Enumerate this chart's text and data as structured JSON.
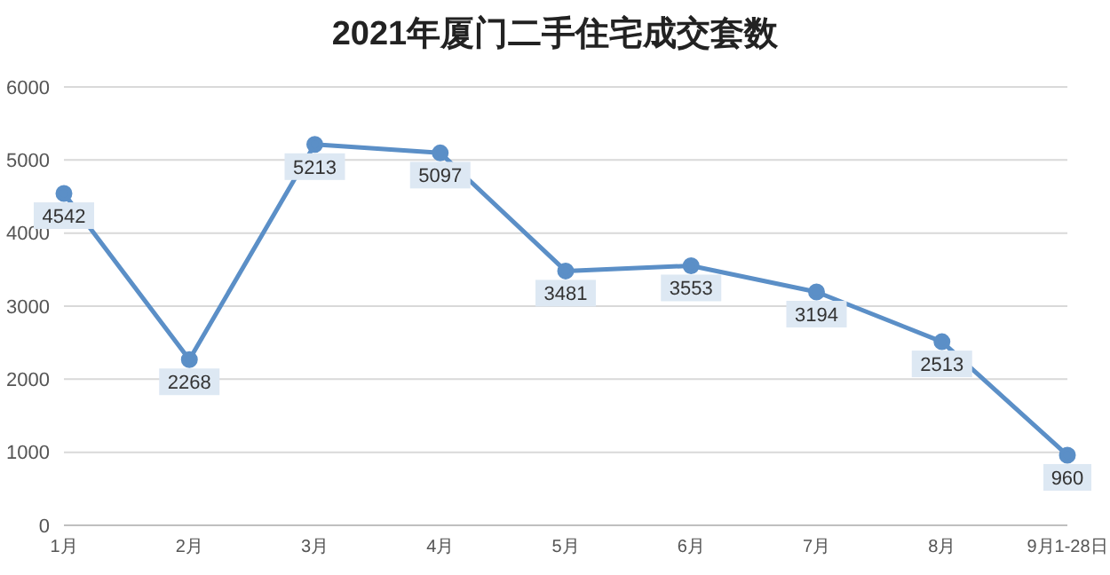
{
  "chart_data": {
    "type": "line",
    "title": "2021年厦门二手住宅成交套数",
    "categories": [
      "1月",
      "2月",
      "3月",
      "4月",
      "5月",
      "6月",
      "7月",
      "8月",
      "9月1-28日"
    ],
    "series": [
      {
        "color": "#5b8fc7",
        "values": [
          4542,
          2268,
          5213,
          5097,
          3481,
          3553,
          3194,
          2513,
          960
        ]
      }
    ],
    "ylim": [
      0,
      6000
    ],
    "yticks": [
      0,
      1000,
      2000,
      3000,
      4000,
      5000,
      6000
    ],
    "grid": "y",
    "marker": "circle",
    "line_style": "solid",
    "data_labels": true
  }
}
